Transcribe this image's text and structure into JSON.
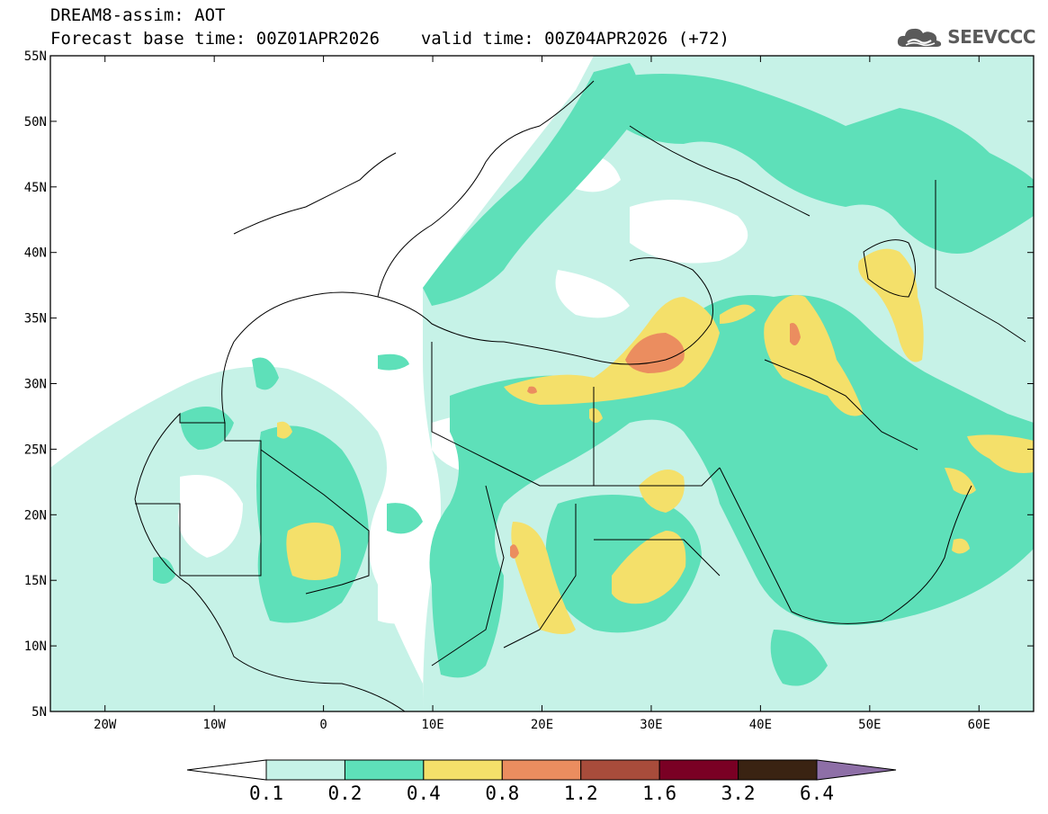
{
  "header": {
    "title_line1": "DREAM8-assim: AOT",
    "base_time_label": "Forecast base time: 00Z01APR2026",
    "valid_time_label": "valid time: 00Z04APR2026 (+72)"
  },
  "logo": {
    "text": "SEEVCCC",
    "icon": "cloud-logo-icon"
  },
  "map": {
    "lon_range": [
      -25,
      65
    ],
    "lat_range": [
      5,
      55
    ],
    "lat_ticks": [
      {
        "value": 55,
        "label": "55N"
      },
      {
        "value": 50,
        "label": "50N"
      },
      {
        "value": 45,
        "label": "45N"
      },
      {
        "value": 40,
        "label": "40N"
      },
      {
        "value": 35,
        "label": "35N"
      },
      {
        "value": 30,
        "label": "30N"
      },
      {
        "value": 25,
        "label": "25N"
      },
      {
        "value": 20,
        "label": "20N"
      },
      {
        "value": 15,
        "label": "15N"
      },
      {
        "value": 10,
        "label": "10N"
      },
      {
        "value": 5,
        "label": "5N"
      }
    ],
    "lon_ticks": [
      {
        "value": -20,
        "label": "20W"
      },
      {
        "value": -10,
        "label": "10W"
      },
      {
        "value": 0,
        "label": "0"
      },
      {
        "value": 10,
        "label": "10E"
      },
      {
        "value": 20,
        "label": "20E"
      },
      {
        "value": 30,
        "label": "30E"
      },
      {
        "value": 40,
        "label": "40E"
      },
      {
        "value": 50,
        "label": "50E"
      },
      {
        "value": 60,
        "label": "60E"
      }
    ]
  },
  "colorbar": {
    "labels": [
      "0.1",
      "0.2",
      "0.4",
      "0.8",
      "1.2",
      "1.6",
      "3.2",
      "6.4"
    ],
    "colors": [
      "#ffffff",
      "#c6f2e7",
      "#5ee0b9",
      "#f4e06a",
      "#eb8d5f",
      "#a84c3b",
      "#7a0024",
      "#3a2312",
      "#8e6fa7"
    ]
  }
}
